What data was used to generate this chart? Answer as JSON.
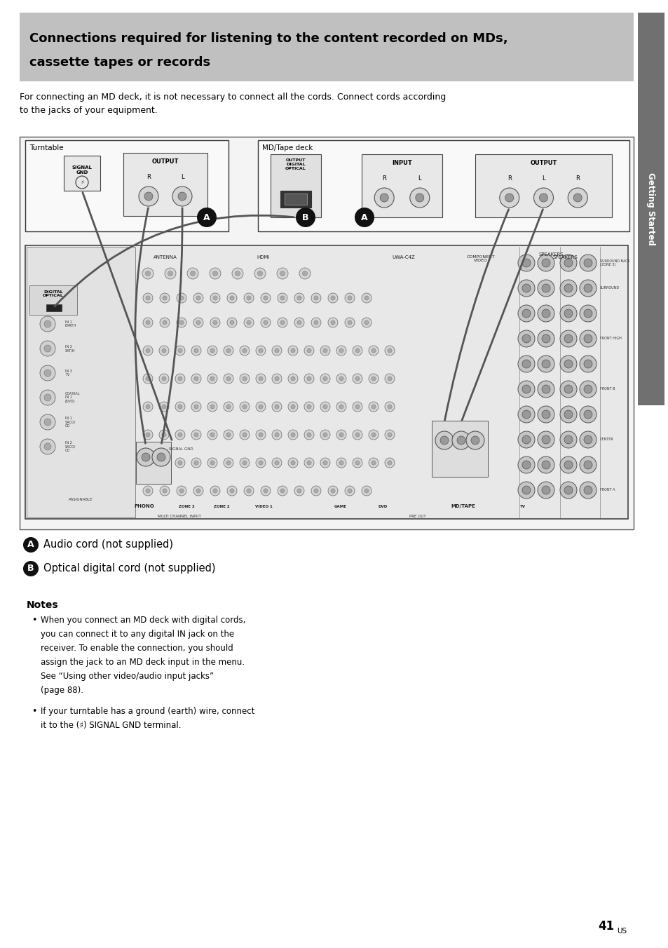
{
  "page_width": 9.54,
  "page_height": 13.52,
  "bg_color": "#ffffff",
  "header_bg": "#c0c0c0",
  "header_text_line1": "Connections required for listening to the content recorded on MDs,",
  "header_text_line2": "cassette tapes or records",
  "header_color": "#000000",
  "sidebar_bg": "#707070",
  "sidebar_text": "Getting Started",
  "intro_text": "For connecting an MD deck, it is not necessary to connect all the cords. Connect cords according\nto the jacks of your equipment.",
  "label_a_text": "Audio cord (not supplied)",
  "label_b_text": "Optical digital cord (not supplied)",
  "notes_title": "Notes",
  "note1_line1": "When you connect an MD deck with digital cords,",
  "note1_line2": "you can connect it to any digital IN jack on the",
  "note1_line3": "receiver. To enable the connection, you should",
  "note1_line4": "assign the jack to an MD deck input in the menu.",
  "note1_line5": "See “Using other video/audio input jacks”",
  "note1_line6": "(page 88).",
  "note2_line1": "If your turntable has a ground (earth) wire, connect",
  "note2_line2": "it to the (♯) SIGNAL GND terminal.",
  "page_number": "41",
  "page_suffix": "US"
}
